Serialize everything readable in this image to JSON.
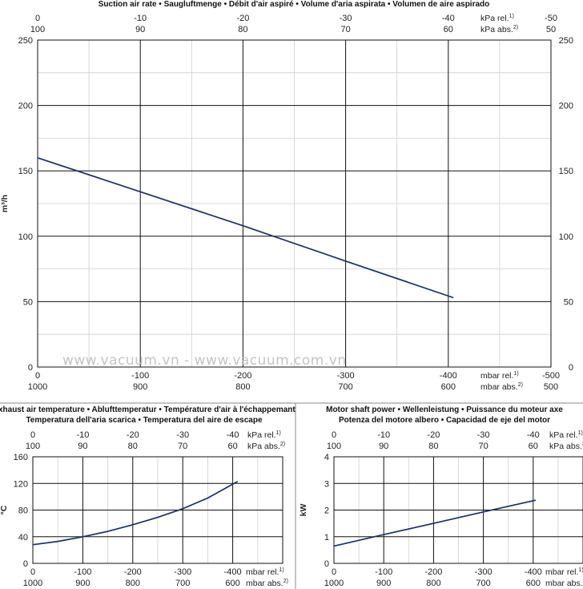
{
  "watermark": "www.vacuum.vn - www.vacuum.com.vn",
  "chart_data": [
    {
      "id": "suction",
      "type": "line",
      "title_lines": [
        "Suction air rate  •  Saugluftmenge  •  Débit d'air aspiré  •  Volume d'aria aspirata  •  Volumen de aire aspirado"
      ],
      "ylabel": "m³/h",
      "ylim": [
        0,
        250
      ],
      "yticks": [
        0,
        50,
        100,
        150,
        200,
        250
      ],
      "right_axis": true,
      "xlim": [
        0,
        -500
      ],
      "xtick_values": [
        0,
        -100,
        -200,
        -300,
        -400,
        -500
      ],
      "bottom_rel_labels": [
        "0",
        "-100",
        "-200",
        "-300",
        "-400",
        "-500"
      ],
      "bottom_abs_labels": [
        "1000",
        "900",
        "800",
        "700",
        "600",
        "500"
      ],
      "bottom_rel_unit": "mbar rel.",
      "bottom_rel_sup": "1)",
      "bottom_abs_unit": "mbar abs.",
      "bottom_abs_sup": "2)",
      "top_rel_labels": [
        "0",
        "-10",
        "-20",
        "-30",
        "-40",
        "-50"
      ],
      "top_abs_labels": [
        "100",
        "90",
        "80",
        "70",
        "60",
        "50"
      ],
      "top_rel_unit": "kPa rel.",
      "top_rel_sup": "1)",
      "top_abs_unit": "kPa abs.",
      "top_abs_sup": "2)",
      "grid": true,
      "series": [
        {
          "x": [
            0,
            -100,
            -200,
            -300,
            -405
          ],
          "y": [
            160,
            134,
            108,
            81,
            53
          ]
        }
      ]
    },
    {
      "id": "temperature",
      "type": "line",
      "title_lines": [
        "Exhaust air temperature  •  Ablufttemperatur  •  Température d'air à l'échappemant",
        "Temperatura dell'aria scarica  •  Temperatura del aire de escape"
      ],
      "ylabel": "°C",
      "ylim": [
        0,
        160
      ],
      "yticks": [
        0,
        40,
        80,
        120,
        160
      ],
      "right_axis": false,
      "xlim": [
        0,
        -500
      ],
      "xtick_values": [
        0,
        -100,
        -200,
        -300,
        -400
      ],
      "bottom_rel_labels": [
        "0",
        "-100",
        "-200",
        "-300",
        "-400"
      ],
      "bottom_abs_labels": [
        "1000",
        "900",
        "800",
        "700",
        "600"
      ],
      "bottom_rel_unit": "mbar rel.",
      "bottom_rel_sup": "1)",
      "bottom_abs_unit": "mbar abs.",
      "bottom_abs_sup": "2)",
      "top_rel_labels": [
        "0",
        "-10",
        "-20",
        "-30",
        "-40"
      ],
      "top_abs_labels": [
        "100",
        "90",
        "80",
        "70",
        "60"
      ],
      "top_rel_unit": "kPa rel.",
      "top_rel_sup": "1)",
      "top_abs_unit": "kPa abs.",
      "top_abs_sup": "2)",
      "grid": true,
      "series": [
        {
          "x": [
            0,
            -50,
            -100,
            -150,
            -200,
            -250,
            -300,
            -350,
            -410
          ],
          "y": [
            28,
            33,
            40,
            48,
            58,
            69,
            82,
            98,
            123
          ]
        }
      ]
    },
    {
      "id": "power",
      "type": "line",
      "title_lines": [
        "Motor shaft power  •  Wellenleistung  •  Puissance du moteur axe",
        "Potenza del motore albero  •  Capacidad de eje del motor"
      ],
      "ylabel": "kW",
      "ylim": [
        0,
        4
      ],
      "yticks": [
        0,
        1,
        2,
        3,
        4
      ],
      "right_axis": false,
      "xlim": [
        0,
        -500
      ],
      "xtick_values": [
        0,
        -100,
        -200,
        -300,
        -400
      ],
      "bottom_rel_labels": [
        "0",
        "-100",
        "-200",
        "-300",
        "-400"
      ],
      "bottom_abs_labels": [
        "1000",
        "900",
        "800",
        "700",
        "600"
      ],
      "bottom_rel_unit": "mbar rel.",
      "bottom_rel_sup": "1)",
      "bottom_abs_unit": "mbar abs.",
      "bottom_abs_sup": "2)",
      "top_rel_labels": [
        "0",
        "-10",
        "-20",
        "-30",
        "-40"
      ],
      "top_abs_labels": [
        "100",
        "90",
        "80",
        "70",
        "60"
      ],
      "top_rel_unit": "kPa rel.",
      "top_rel_sup": "1)",
      "top_abs_unit": "kPa abs.",
      "top_abs_sup": "2)",
      "grid": true,
      "series": [
        {
          "x": [
            0,
            -100,
            -200,
            -300,
            -405
          ],
          "y": [
            0.65,
            1.08,
            1.5,
            1.93,
            2.37
          ]
        }
      ]
    }
  ]
}
